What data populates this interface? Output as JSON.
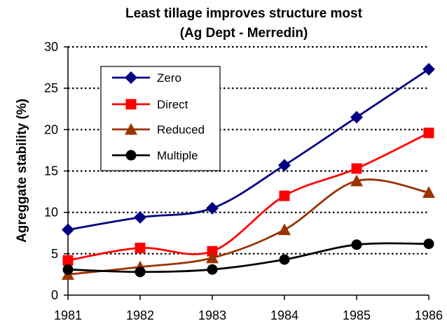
{
  "chart_data": {
    "type": "line",
    "title": [
      "Least tillage improves structure most",
      "(Ag Dept - Merredin)"
    ],
    "xlabel": "",
    "ylabel": "Agreggate stability (%)",
    "x": [
      1981,
      1982,
      1983,
      1984,
      1985,
      1986
    ],
    "xticks": [
      "1981",
      "1982",
      "1983",
      "1984",
      "1985",
      "1986"
    ],
    "ylim": [
      0,
      30
    ],
    "yticks": [
      "0",
      "5",
      "10",
      "15",
      "20",
      "25",
      "30"
    ],
    "grid": "horizontal dotted",
    "legend_position": "upper-left",
    "series": [
      {
        "name": "Zero",
        "color": "#000080",
        "marker": "diamond",
        "values": [
          7.9,
          9.4,
          10.5,
          15.7,
          21.5,
          27.3
        ]
      },
      {
        "name": "Direct",
        "color": "#ff0000",
        "marker": "square",
        "values": [
          4.2,
          5.7,
          5.3,
          12.0,
          15.3,
          19.6
        ]
      },
      {
        "name": "Reduced",
        "color": "#993300",
        "marker": "triangle",
        "values": [
          2.5,
          3.4,
          4.5,
          7.9,
          13.8,
          12.4
        ]
      },
      {
        "name": "Multiple",
        "color": "#000000",
        "marker": "circle",
        "values": [
          3.1,
          2.8,
          3.1,
          4.3,
          6.1,
          6.2
        ]
      }
    ]
  }
}
